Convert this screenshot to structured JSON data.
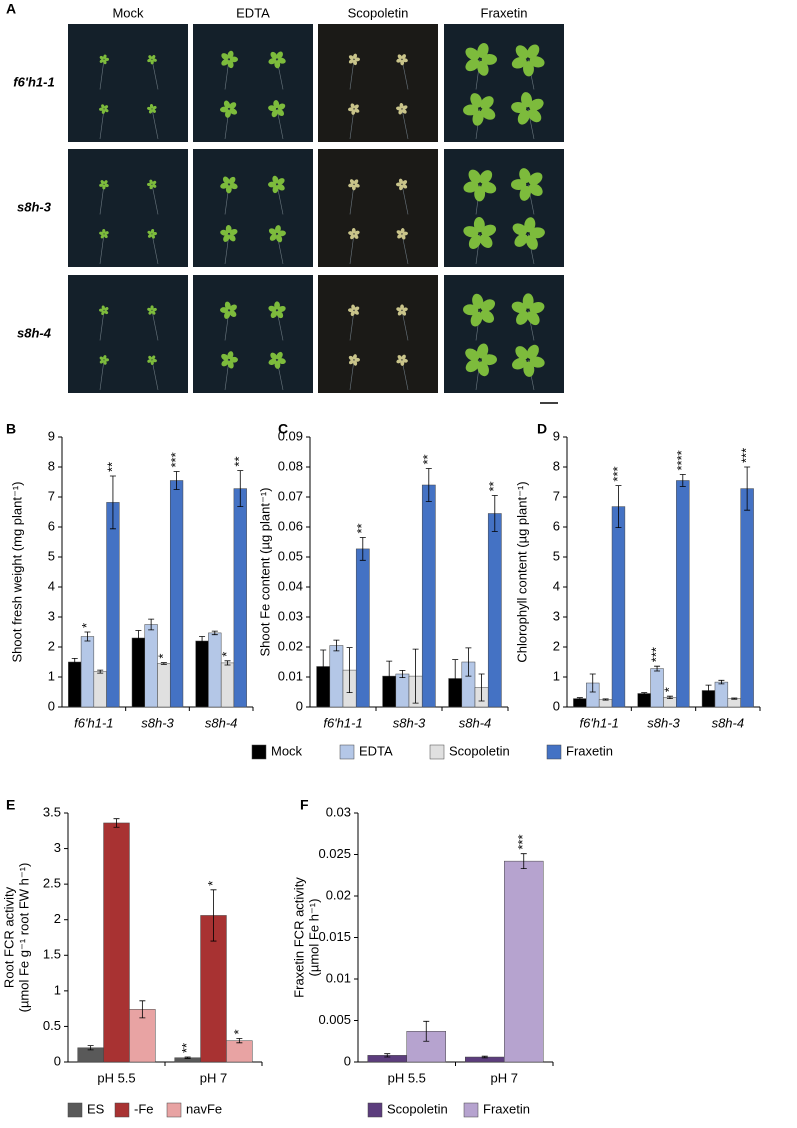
{
  "panel_a": {
    "label": "A",
    "columns": [
      "Mock",
      "EDTA",
      "Scopoletin",
      "Fraxetin"
    ],
    "rows": [
      "f6'h1-1",
      "s8h-3",
      "s8h-4"
    ]
  },
  "legend": [
    {
      "name": "Mock",
      "color": "#000000"
    },
    {
      "name": "EDTA",
      "color": "#b4c7e7"
    },
    {
      "name": "Scopoletin",
      "color": "#e0e0e0"
    },
    {
      "name": "Fraxetin",
      "color": "#4472c4"
    }
  ],
  "chart_data": [
    {
      "type": "bar",
      "label": "B",
      "ylabel": "Shoot fresh weight (mg plant⁻¹)",
      "categories": [
        "f6'h1-1",
        "s8h-3",
        "s8h-4"
      ],
      "ylim": [
        0,
        9
      ],
      "yticks": [
        0,
        1,
        2,
        3,
        4,
        5,
        6,
        7,
        8,
        9
      ],
      "series": [
        {
          "values": [
            1.5,
            2.3,
            2.2
          ],
          "errors": [
            0.12,
            0.25,
            0.15
          ],
          "annotations": [
            null,
            null,
            null
          ]
        },
        {
          "values": [
            2.35,
            2.75,
            2.47
          ],
          "errors": [
            0.15,
            0.18,
            0.06
          ],
          "annotations": [
            "*",
            null,
            null
          ]
        },
        {
          "values": [
            1.18,
            1.45,
            1.47
          ],
          "errors": [
            0.05,
            0.03,
            0.07
          ],
          "annotations": [
            null,
            "*",
            "*"
          ]
        },
        {
          "values": [
            6.82,
            7.55,
            7.28
          ],
          "errors": [
            0.88,
            0.3,
            0.6
          ],
          "annotations": [
            "**",
            "***",
            "**"
          ]
        }
      ]
    },
    {
      "type": "bar",
      "label": "C",
      "ylabel": "Shoot Fe content (µg plant⁻¹)",
      "categories": [
        "f6'h1-1",
        "s8h-3",
        "s8h-4"
      ],
      "ylim": [
        0,
        0.09
      ],
      "yticks": [
        0,
        0.01,
        0.02,
        0.03,
        0.04,
        0.05,
        0.06,
        0.07,
        0.08,
        0.09
      ],
      "series": [
        {
          "values": [
            0.0135,
            0.0103,
            0.0095
          ],
          "errors": [
            0.0055,
            0.005,
            0.0063
          ],
          "annotations": [
            null,
            null,
            null
          ]
        },
        {
          "values": [
            0.0205,
            0.011,
            0.015
          ],
          "errors": [
            0.0018,
            0.0012,
            0.0047
          ],
          "annotations": [
            null,
            null,
            null
          ]
        },
        {
          "values": [
            0.0123,
            0.0103,
            0.0065
          ],
          "errors": [
            0.0075,
            0.009,
            0.0045
          ],
          "annotations": [
            null,
            null,
            null
          ]
        },
        {
          "values": [
            0.0527,
            0.074,
            0.0645
          ],
          "errors": [
            0.0038,
            0.0055,
            0.006
          ],
          "annotations": [
            "**",
            "**",
            "**"
          ]
        }
      ]
    },
    {
      "type": "bar",
      "label": "D",
      "ylabel": "Chlorophyll content (µg plant⁻¹)",
      "categories": [
        "f6'h1-1",
        "s8h-3",
        "s8h-4"
      ],
      "ylim": [
        0,
        9
      ],
      "yticks": [
        0,
        1,
        2,
        3,
        4,
        5,
        6,
        7,
        8,
        9
      ],
      "series": [
        {
          "values": [
            0.28,
            0.45,
            0.55
          ],
          "errors": [
            0.03,
            0.03,
            0.18
          ],
          "annotations": [
            null,
            null,
            null
          ]
        },
        {
          "values": [
            0.8,
            1.28,
            0.83
          ],
          "errors": [
            0.3,
            0.08,
            0.06
          ],
          "annotations": [
            null,
            "***",
            null
          ]
        },
        {
          "values": [
            0.25,
            0.32,
            0.28
          ],
          "errors": [
            0.02,
            0.04,
            0.02
          ],
          "annotations": [
            null,
            "*",
            null
          ]
        },
        {
          "values": [
            6.68,
            7.55,
            7.28
          ],
          "errors": [
            0.7,
            0.2,
            0.72
          ],
          "annotations": [
            "***",
            "****",
            "***"
          ]
        }
      ]
    },
    {
      "type": "bar",
      "label": "E",
      "ylabel": [
        "Root FCR activity",
        "(µmol Fe g⁻¹ root FW h⁻¹)"
      ],
      "categories": [
        "pH 5.5",
        "pH 7"
      ],
      "ylim": [
        0,
        3.5
      ],
      "yticks": [
        0,
        0.5,
        1,
        1.5,
        2,
        2.5,
        3,
        3.5
      ],
      "series": [
        {
          "name": "ES",
          "color": "#595959",
          "values": [
            0.2,
            0.06
          ],
          "errors": [
            0.03,
            0.01
          ],
          "annotations": [
            null,
            "**"
          ]
        },
        {
          "name": "-Fe",
          "color": "#a83232",
          "values": [
            3.36,
            2.06
          ],
          "errors": [
            0.06,
            0.36
          ],
          "annotations": [
            null,
            "*"
          ]
        },
        {
          "name": "navFe",
          "color": "#e8a3a3",
          "values": [
            0.74,
            0.3
          ],
          "errors": [
            0.12,
            0.03
          ],
          "annotations": [
            null,
            "*"
          ]
        }
      ]
    },
    {
      "type": "bar",
      "label": "F",
      "ylabel": [
        "Fraxetin FCR activity",
        "(µmol Fe h⁻¹)"
      ],
      "categories": [
        "pH 5.5",
        "pH 7"
      ],
      "ylim": [
        0,
        0.03
      ],
      "yticks": [
        0,
        0.005,
        0.01,
        0.015,
        0.02,
        0.025,
        0.03
      ],
      "series": [
        {
          "name": "Scopoletin",
          "color": "#5c3d7d",
          "values": [
            0.0008,
            0.0006
          ],
          "errors": [
            0.0002,
            0.0001
          ],
          "annotations": [
            null,
            null
          ]
        },
        {
          "name": "Fraxetin",
          "color": "#b6a3cf",
          "values": [
            0.0037,
            0.0242
          ],
          "errors": [
            0.0012,
            0.0009
          ],
          "annotations": [
            null,
            "***"
          ]
        }
      ]
    }
  ]
}
